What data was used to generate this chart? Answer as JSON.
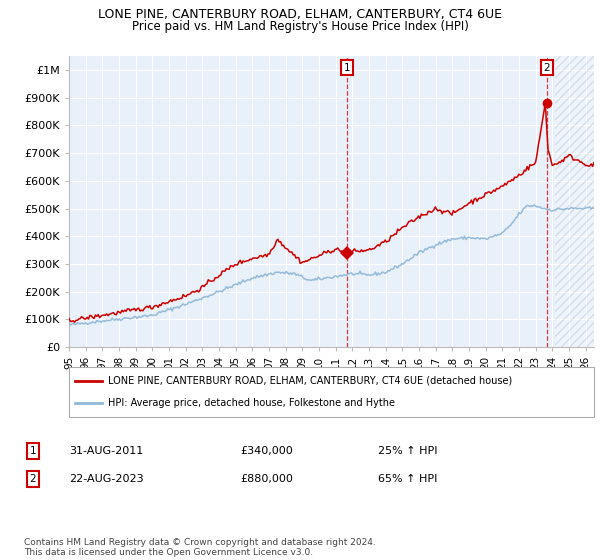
{
  "title": "LONE PINE, CANTERBURY ROAD, ELHAM, CANTERBURY, CT4 6UE",
  "subtitle": "Price paid vs. HM Land Registry's House Price Index (HPI)",
  "xlim": [
    1995.0,
    2026.5
  ],
  "ylim": [
    0,
    1050000
  ],
  "yticks": [
    0,
    100000,
    200000,
    300000,
    400000,
    500000,
    600000,
    700000,
    800000,
    900000,
    1000000
  ],
  "ytick_labels": [
    "£0",
    "£100K",
    "£200K",
    "£300K",
    "£400K",
    "£500K",
    "£600K",
    "£700K",
    "£800K",
    "£900K",
    "£1M"
  ],
  "xticks": [
    1995,
    1996,
    1997,
    1998,
    1999,
    2000,
    2001,
    2002,
    2003,
    2004,
    2005,
    2006,
    2007,
    2008,
    2009,
    2010,
    2011,
    2012,
    2013,
    2014,
    2015,
    2016,
    2017,
    2018,
    2019,
    2020,
    2021,
    2022,
    2023,
    2024,
    2025,
    2026
  ],
  "plot_background": "#e8f0fa",
  "grid_color": "#ffffff",
  "hpi_color": "#90b8d8",
  "price_color": "#cc0000",
  "marker1_date": 2011.667,
  "marker1_value": 340000,
  "marker2_date": 2023.667,
  "marker2_value": 880000,
  "hatch_start": 2024.17,
  "legend_label_red": "LONE PINE, CANTERBURY ROAD, ELHAM, CANTERBURY, CT4 6UE (detached house)",
  "legend_label_blue": "HPI: Average price, detached house, Folkestone and Hythe",
  "annotation1_date": "31-AUG-2011",
  "annotation1_price": "£340,000",
  "annotation1_pct": "25% ↑ HPI",
  "annotation2_date": "22-AUG-2023",
  "annotation2_price": "£880,000",
  "annotation2_pct": "65% ↑ HPI",
  "footer": "Contains HM Land Registry data © Crown copyright and database right 2024.\nThis data is licensed under the Open Government Licence v3.0."
}
